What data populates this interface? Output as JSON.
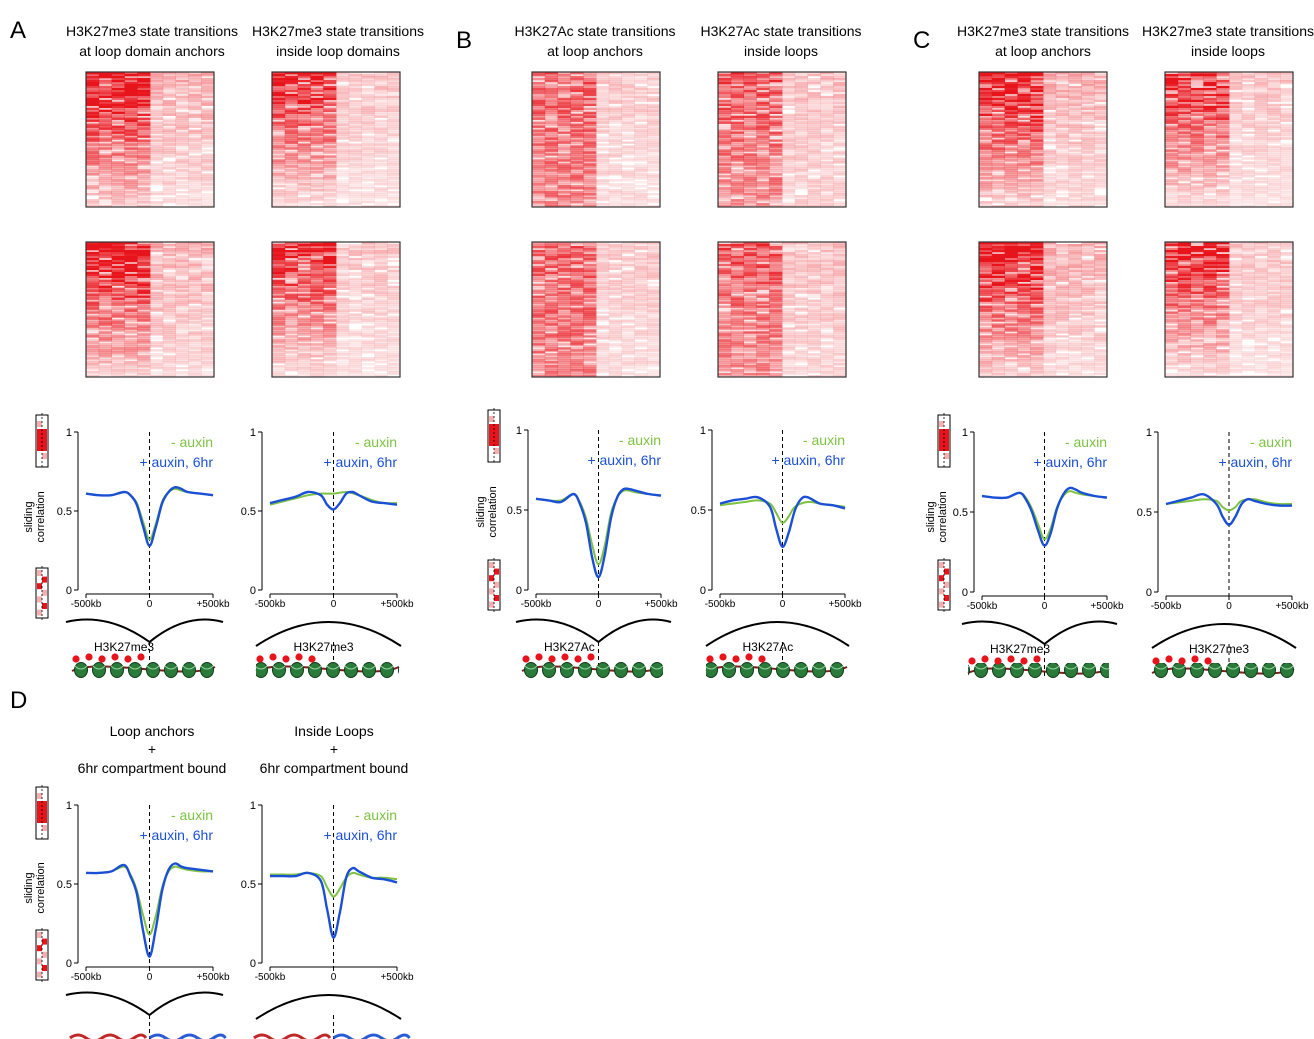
{
  "colors": {
    "heat": "#e8141c",
    "minus_auxin": "#7dc242",
    "plus_auxin": "#1a4fd6",
    "axis": "#000000"
  },
  "common": {
    "y_axis_label_line1": "sliding",
    "y_axis_label_line2": "correlation",
    "x_left_tick": "-500kb",
    "x_center_tick": "0",
    "x_right_tick": "+500kb",
    "y_ticks": [
      "0",
      "0.5",
      "1"
    ],
    "legend_minus": "- auxin",
    "legend_plus": "+ auxin, 6hr"
  },
  "panels": [
    {
      "letter": "A"
    },
    {
      "letter": "B"
    },
    {
      "letter": "C"
    },
    {
      "letter": "D"
    }
  ],
  "chart_data": [
    {
      "panel": "A",
      "type": "line",
      "title_line1": "H3K27me3 state transitions",
      "title_line2": "at loop domain anchors",
      "schematic_label": "H3K27me3",
      "schematic": "anchor-nucleosome",
      "xlim": [
        -500,
        500
      ],
      "ylim": [
        0,
        1
      ],
      "series": [
        {
          "name": "- auxin",
          "x": [
            -500,
            -400,
            -300,
            -200,
            -150,
            -100,
            -50,
            0,
            50,
            100,
            150,
            200,
            250,
            300,
            400,
            500
          ],
          "y": [
            0.61,
            0.6,
            0.6,
            0.62,
            0.6,
            0.55,
            0.43,
            0.32,
            0.42,
            0.56,
            0.62,
            0.64,
            0.63,
            0.62,
            0.61,
            0.6
          ]
        },
        {
          "name": "+ auxin, 6hr",
          "x": [
            -500,
            -400,
            -300,
            -200,
            -150,
            -100,
            -50,
            0,
            50,
            100,
            150,
            200,
            250,
            300,
            400,
            500
          ],
          "y": [
            0.61,
            0.6,
            0.6,
            0.62,
            0.6,
            0.54,
            0.4,
            0.28,
            0.4,
            0.55,
            0.62,
            0.65,
            0.64,
            0.62,
            0.61,
            0.6
          ]
        }
      ]
    },
    {
      "panel": "A",
      "type": "line",
      "title_line1": "H3K27me3 state transitions",
      "title_line2": "inside loop domains",
      "schematic_label": "H3K27me3",
      "schematic": "inside-nucleosome",
      "xlim": [
        -500,
        500
      ],
      "ylim": [
        0,
        1
      ],
      "series": [
        {
          "name": "- auxin",
          "x": [
            -500,
            -400,
            -300,
            -200,
            -100,
            0,
            100,
            200,
            300,
            400,
            500
          ],
          "y": [
            0.54,
            0.56,
            0.58,
            0.6,
            0.61,
            0.61,
            0.62,
            0.6,
            0.57,
            0.55,
            0.55
          ]
        },
        {
          "name": "+ auxin, 6hr",
          "x": [
            -500,
            -400,
            -300,
            -200,
            -100,
            -50,
            0,
            50,
            100,
            150,
            200,
            300,
            400,
            500
          ],
          "y": [
            0.55,
            0.57,
            0.59,
            0.62,
            0.6,
            0.54,
            0.51,
            0.55,
            0.61,
            0.62,
            0.6,
            0.56,
            0.55,
            0.54
          ]
        }
      ]
    },
    {
      "panel": "B",
      "type": "line",
      "title_line1": "H3K27Ac state transitions",
      "title_line2": "at loop anchors",
      "schematic_label": "H3K27Ac",
      "schematic": "anchor-nucleosome",
      "xlim": [
        -500,
        500
      ],
      "ylim": [
        0,
        1
      ],
      "series": [
        {
          "name": "- auxin",
          "x": [
            -500,
            -400,
            -300,
            -200,
            -150,
            -100,
            -50,
            0,
            50,
            100,
            150,
            200,
            250,
            300,
            400,
            500
          ],
          "y": [
            0.57,
            0.56,
            0.56,
            0.6,
            0.55,
            0.45,
            0.28,
            0.16,
            0.28,
            0.48,
            0.58,
            0.62,
            0.62,
            0.61,
            0.6,
            0.59
          ]
        },
        {
          "name": "+ auxin, 6hr",
          "x": [
            -500,
            -400,
            -300,
            -200,
            -150,
            -100,
            -50,
            0,
            50,
            100,
            150,
            200,
            250,
            300,
            400,
            500
          ],
          "y": [
            0.57,
            0.56,
            0.55,
            0.6,
            0.54,
            0.42,
            0.2,
            0.08,
            0.22,
            0.45,
            0.58,
            0.63,
            0.63,
            0.62,
            0.6,
            0.59
          ]
        }
      ]
    },
    {
      "panel": "B",
      "type": "line",
      "title_line1": "H3K27Ac state transitions",
      "title_line2": "inside loops",
      "schematic_label": "H3K27Ac",
      "schematic": "inside-nucleosome",
      "xlim": [
        -500,
        500
      ],
      "ylim": [
        0,
        1
      ],
      "series": [
        {
          "name": "- auxin",
          "x": [
            -500,
            -400,
            -300,
            -200,
            -100,
            -50,
            0,
            50,
            100,
            200,
            300,
            400,
            500
          ],
          "y": [
            0.53,
            0.54,
            0.55,
            0.56,
            0.54,
            0.48,
            0.42,
            0.46,
            0.52,
            0.55,
            0.54,
            0.53,
            0.52
          ]
        },
        {
          "name": "+ auxin, 6hr",
          "x": [
            -500,
            -400,
            -300,
            -200,
            -100,
            -50,
            0,
            50,
            100,
            150,
            200,
            300,
            400,
            500
          ],
          "y": [
            0.54,
            0.56,
            0.57,
            0.58,
            0.52,
            0.38,
            0.27,
            0.36,
            0.5,
            0.57,
            0.58,
            0.54,
            0.53,
            0.51
          ]
        }
      ]
    },
    {
      "panel": "C",
      "type": "line",
      "title_line1": "H3K27me3 state transitions",
      "title_line2": "at loop anchors",
      "schematic_label": "H3K27me3",
      "schematic": "anchor-nucleosome",
      "xlim": [
        -500,
        500
      ],
      "ylim": [
        0,
        1
      ],
      "series": [
        {
          "name": "- auxin",
          "x": [
            -500,
            -400,
            -300,
            -200,
            -150,
            -100,
            -50,
            0,
            50,
            100,
            150,
            200,
            250,
            300,
            400,
            500
          ],
          "y": [
            0.6,
            0.59,
            0.59,
            0.62,
            0.59,
            0.52,
            0.42,
            0.33,
            0.4,
            0.53,
            0.6,
            0.63,
            0.62,
            0.61,
            0.6,
            0.59
          ]
        },
        {
          "name": "+ auxin, 6hr",
          "x": [
            -500,
            -400,
            -300,
            -200,
            -150,
            -100,
            -50,
            0,
            50,
            100,
            150,
            200,
            250,
            300,
            400,
            500
          ],
          "y": [
            0.6,
            0.59,
            0.59,
            0.62,
            0.58,
            0.5,
            0.38,
            0.29,
            0.37,
            0.52,
            0.61,
            0.65,
            0.64,
            0.62,
            0.6,
            0.59
          ]
        }
      ]
    },
    {
      "panel": "C",
      "type": "line",
      "title_line1": "H3K27me3 state transitions",
      "title_line2": "inside loops",
      "schematic_label": "H3K27me3",
      "schematic": "inside-nucleosome",
      "xlim": [
        -500,
        500
      ],
      "ylim": [
        0,
        1
      ],
      "series": [
        {
          "name": "- auxin",
          "x": [
            -500,
            -400,
            -300,
            -200,
            -100,
            -50,
            0,
            50,
            100,
            200,
            300,
            400,
            500
          ],
          "y": [
            0.55,
            0.56,
            0.57,
            0.58,
            0.57,
            0.53,
            0.51,
            0.53,
            0.57,
            0.58,
            0.56,
            0.55,
            0.55
          ]
        },
        {
          "name": "+ auxin, 6hr",
          "x": [
            -500,
            -400,
            -300,
            -200,
            -100,
            -50,
            0,
            50,
            100,
            150,
            200,
            300,
            400,
            500
          ],
          "y": [
            0.55,
            0.57,
            0.59,
            0.61,
            0.55,
            0.47,
            0.42,
            0.47,
            0.55,
            0.58,
            0.57,
            0.55,
            0.54,
            0.54
          ]
        }
      ]
    },
    {
      "panel": "D",
      "type": "line",
      "title_line1": "Loop anchors",
      "title_line2": "+",
      "title_line3": "6hr compartment bound",
      "schematic_label": "",
      "schematic": "anchor-compartment",
      "xlim": [
        -500,
        500
      ],
      "ylim": [
        0,
        1
      ],
      "series": [
        {
          "name": "- auxin",
          "x": [
            -500,
            -400,
            -300,
            -200,
            -150,
            -100,
            -50,
            0,
            50,
            100,
            150,
            200,
            250,
            300,
            400,
            500
          ],
          "y": [
            0.57,
            0.57,
            0.58,
            0.61,
            0.56,
            0.46,
            0.3,
            0.18,
            0.3,
            0.48,
            0.58,
            0.61,
            0.6,
            0.59,
            0.58,
            0.58
          ]
        },
        {
          "name": "+ auxin, 6hr",
          "x": [
            -500,
            -400,
            -300,
            -200,
            -150,
            -100,
            -50,
            0,
            50,
            100,
            150,
            200,
            250,
            300,
            400,
            500
          ],
          "y": [
            0.57,
            0.57,
            0.58,
            0.62,
            0.55,
            0.44,
            0.2,
            0.04,
            0.22,
            0.46,
            0.59,
            0.63,
            0.61,
            0.6,
            0.59,
            0.58
          ]
        }
      ]
    },
    {
      "panel": "D",
      "type": "line",
      "title_line1": "Inside Loops",
      "title_line2": "+",
      "title_line3": "6hr compartment bound",
      "schematic_label": "",
      "schematic": "inside-compartment",
      "xlim": [
        -500,
        500
      ],
      "ylim": [
        0,
        1
      ],
      "series": [
        {
          "name": "- auxin",
          "x": [
            -500,
            -400,
            -300,
            -200,
            -100,
            -50,
            0,
            50,
            100,
            150,
            200,
            300,
            400,
            500
          ],
          "y": [
            0.56,
            0.56,
            0.56,
            0.57,
            0.55,
            0.48,
            0.42,
            0.47,
            0.54,
            0.57,
            0.56,
            0.54,
            0.54,
            0.53
          ]
        },
        {
          "name": "+ auxin, 6hr",
          "x": [
            -500,
            -400,
            -300,
            -200,
            -100,
            -50,
            0,
            50,
            100,
            150,
            200,
            300,
            400,
            500
          ],
          "y": [
            0.55,
            0.55,
            0.55,
            0.57,
            0.52,
            0.34,
            0.16,
            0.32,
            0.54,
            0.6,
            0.58,
            0.54,
            0.53,
            0.51
          ]
        }
      ]
    }
  ]
}
